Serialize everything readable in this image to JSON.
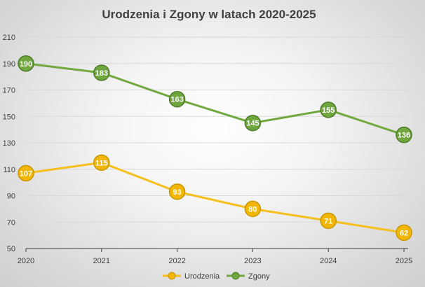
{
  "chart_data": {
    "type": "line",
    "title": "Urodzenia i Zgony w latach 2020-2025",
    "x": [
      "2020",
      "2021",
      "2022",
      "2023",
      "2024",
      "2025"
    ],
    "ylim": [
      50,
      210
    ],
    "yticks": [
      50,
      70,
      90,
      110,
      130,
      150,
      170,
      190,
      210
    ],
    "grid": true,
    "legend_position": "bottom",
    "series": [
      {
        "name": "Urodzenia",
        "values": [
          107,
          115,
          93,
          80,
          71,
          62
        ],
        "color": "#F5BF1D",
        "marker_fill": "#F2B705",
        "marker_edge": "#C99700"
      },
      {
        "name": "Zgony",
        "values": [
          190,
          183,
          163,
          145,
          155,
          136
        ],
        "color": "#72A840",
        "marker_fill": "#6FA63D",
        "marker_edge": "#4E7D2A"
      }
    ]
  }
}
